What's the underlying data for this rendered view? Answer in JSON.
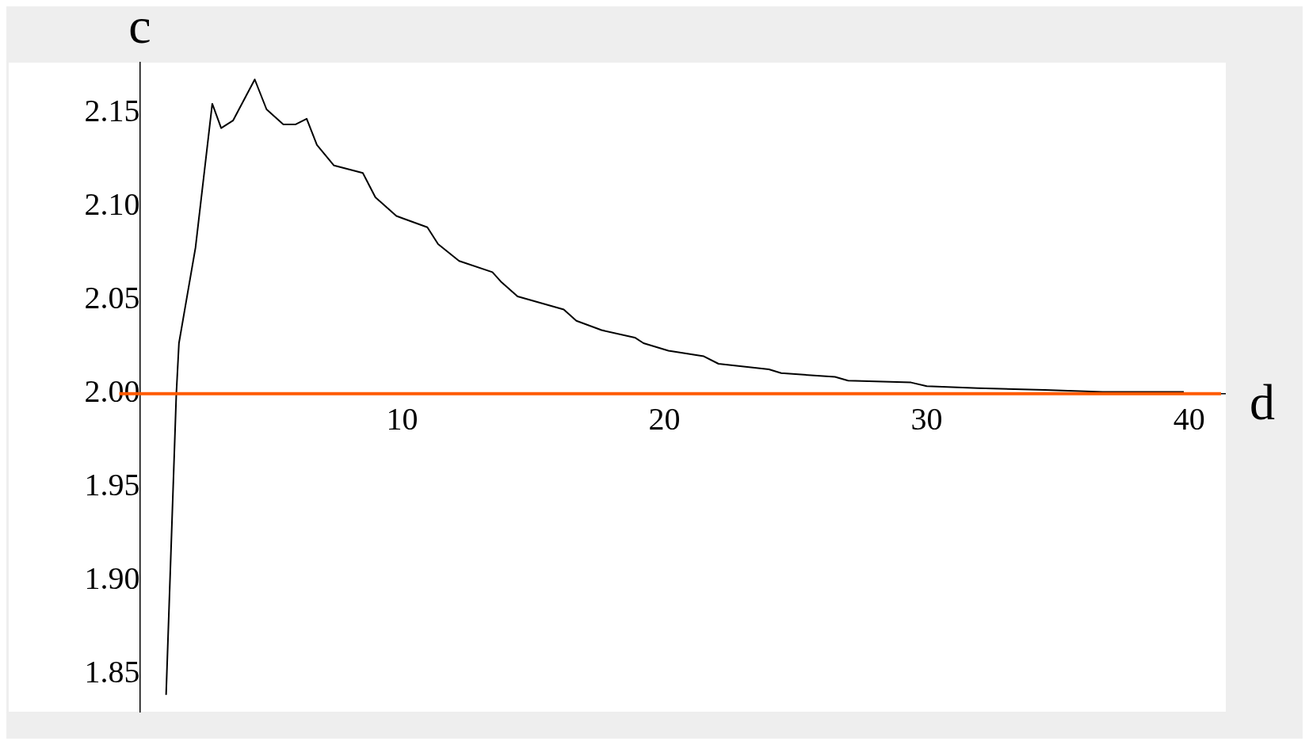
{
  "chart_data": {
    "type": "line",
    "xlabel": "d",
    "ylabel": "c",
    "x": [
      1.0,
      1.39,
      1.49,
      1.65,
      2.12,
      2.76,
      3.1,
      3.55,
      4.38,
      4.83,
      5.47,
      5.94,
      6.36,
      6.75,
      7.4,
      8.5,
      8.98,
      9.78,
      10.96,
      11.37,
      12.17,
      13.44,
      13.76,
      14.4,
      16.16,
      16.64,
      17.6,
      18.87,
      19.2,
      20.15,
      21.5,
      22.06,
      23.98,
      24.45,
      26.5,
      27.0,
      29.4,
      30.0,
      31.95,
      34.5,
      36.7,
      39.8
    ],
    "series": [
      {
        "color": "#000000",
        "values": [
          1.839,
          2.0,
          2.027,
          2.04,
          2.078,
          2.155,
          2.142,
          2.146,
          2.168,
          2.152,
          2.144,
          2.144,
          2.147,
          2.133,
          2.122,
          2.118,
          2.105,
          2.095,
          2.089,
          2.08,
          2.071,
          2.065,
          2.06,
          2.052,
          2.045,
          2.039,
          2.034,
          2.03,
          2.027,
          2.023,
          2.02,
          2.016,
          2.013,
          2.011,
          2.009,
          2.007,
          2.006,
          2.004,
          2.003,
          2.002,
          2.001,
          2.001
        ]
      }
    ],
    "xlim": [
      -5,
      41.4
    ],
    "ylim": [
      1.83,
      2.177
    ],
    "xticks": [
      10,
      20,
      30,
      40
    ],
    "yticks": [
      1.85,
      {
        "value": 1.9,
        "label": "1.90"
      },
      1.95,
      {
        "value": 2.0,
        "label": "2.00"
      },
      2.05,
      {
        "value": 2.1,
        "label": "2.10"
      },
      2.15
    ],
    "ref_lines": [
      {
        "axis": "y",
        "value": 2.0,
        "color": "#ff5a00"
      }
    ],
    "grid": false,
    "legend": false,
    "marker": "none",
    "line_style": "solid"
  }
}
